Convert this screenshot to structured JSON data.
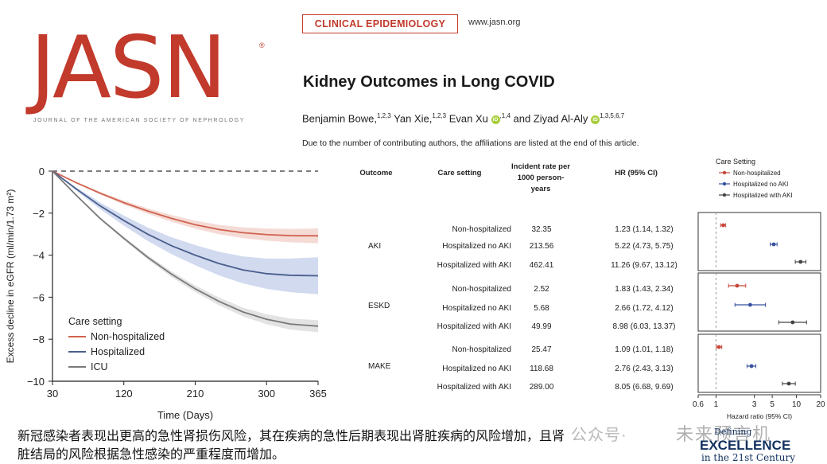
{
  "header": {
    "logo_text": "JASN",
    "logo_reg": "®",
    "logo_subtitle": "JOURNAL OF THE AMERICAN SOCIETY OF NEPHROLOGY",
    "section_badge": "CLINICAL EPIDEMIOLOGY",
    "website": "www.jasn.org",
    "title": "Kidney Outcomes in Long COVID",
    "authors": [
      {
        "name": "Benjamin Bowe,",
        "sup": "1,2,3"
      },
      {
        "name": "Yan Xie,",
        "sup": "1,2,3"
      },
      {
        "name": "Evan Xu",
        "sup": ",1,4",
        "orcid": true
      },
      {
        "name": "and Ziyad Al-Aly",
        "sup": "1,3,5,6,7",
        "orcid": true
      }
    ],
    "orcid_label": "iD",
    "affiliation_note": "Due to the number of contributing authors, the affiliations are listed at the end of this article."
  },
  "chart_data": [
    {
      "type": "line",
      "title": "",
      "xlabel": "Time (Days)",
      "ylabel": "Excess decline in eGFR (ml/min/1.73 m²)",
      "xlim": [
        30,
        365
      ],
      "ylim": [
        -10,
        0
      ],
      "xticks": [
        30,
        120,
        210,
        300,
        365
      ],
      "yticks": [
        0,
        -2,
        -4,
        -6,
        -8,
        -10
      ],
      "legend_title": "Care setting",
      "legend_position": "bottom-left",
      "reference_line": 0,
      "series": [
        {
          "name": "Non-hospitalized",
          "color": "#d0624e",
          "band_color": "#f3d5cf",
          "x": [
            30,
            60,
            90,
            120,
            150,
            180,
            210,
            240,
            270,
            300,
            330,
            365
          ],
          "y": [
            0,
            -0.55,
            -1.05,
            -1.5,
            -1.9,
            -2.25,
            -2.55,
            -2.78,
            -2.93,
            -3.02,
            -3.07,
            -3.08
          ],
          "band": 0.22
        },
        {
          "name": "Hospitalized",
          "color": "#4a5e8c",
          "band_color": "#c9d3ec",
          "x": [
            30,
            60,
            90,
            120,
            150,
            180,
            210,
            240,
            270,
            300,
            330,
            365
          ],
          "y": [
            0,
            -0.85,
            -1.65,
            -2.35,
            -3.0,
            -3.55,
            -4.0,
            -4.4,
            -4.7,
            -4.88,
            -4.96,
            -4.98
          ],
          "band": 0.55
        },
        {
          "name": "ICU",
          "color": "#7a7a7a",
          "band_color": "#dedede",
          "x": [
            30,
            60,
            90,
            120,
            150,
            180,
            210,
            240,
            270,
            300,
            330,
            365
          ],
          "y": [
            0,
            -1.15,
            -2.25,
            -3.2,
            -4.1,
            -4.9,
            -5.6,
            -6.2,
            -6.7,
            -7.05,
            -7.28,
            -7.38
          ],
          "band": 0.18
        }
      ]
    },
    {
      "type": "table",
      "columns": [
        "Outcome",
        "Care setting",
        "Incident rate per 1000 person-years",
        "HR (95% CI)"
      ],
      "rows": [
        {
          "outcome": "AKI",
          "setting": "Non-hospitalized",
          "rate": "32.35",
          "hr": "1.23 (1.14, 1.32)"
        },
        {
          "outcome": "",
          "setting": "Hospitalized no AKI",
          "rate": "213.56",
          "hr": "5.22 (4.73, 5.75)"
        },
        {
          "outcome": "",
          "setting": "Hospitalized with AKI",
          "rate": "462.41",
          "hr": "11.26 (9.67, 13.12)"
        },
        {
          "outcome": "ESKD",
          "setting": "Non-hospitalized",
          "rate": "2.52",
          "hr": "1.83 (1.43, 2.34)"
        },
        {
          "outcome": "",
          "setting": "Hospitalized no AKI",
          "rate": "5.68",
          "hr": "2.66 (1.72, 4.12)"
        },
        {
          "outcome": "",
          "setting": "Hospitalized with AKI",
          "rate": "49.99",
          "hr": "8.98 (6.03, 13.37)"
        },
        {
          "outcome": "MAKE",
          "setting": "Non-hospitalized",
          "rate": "25.47",
          "hr": "1.09 (1.01, 1.18)"
        },
        {
          "outcome": "",
          "setting": "Hospitalized no AKI",
          "rate": "118.68",
          "hr": "2.76 (2.43, 3.13)"
        },
        {
          "outcome": "",
          "setting": "Hospitalized with AKI",
          "rate": "289.00",
          "hr": "8.05 (6.68, 9.69)"
        }
      ]
    },
    {
      "type": "scatter",
      "title": "",
      "xlabel": "Hazard ratio (95% CI)",
      "x_scale": "log",
      "xlim": [
        0.6,
        20
      ],
      "xticks": [
        "0.6",
        "1",
        "3",
        "5",
        "10",
        "20"
      ],
      "xtick_values": [
        0.6,
        1,
        3,
        5,
        10,
        20
      ],
      "reference_line": 1,
      "legend_title": "Care Setting",
      "legend_position": "top",
      "series": [
        {
          "name": "Non-hospitalized",
          "color": "#c8463a"
        },
        {
          "name": "Hospitalized no AKI",
          "color": "#3651a0"
        },
        {
          "name": "Hospitalized with AKI",
          "color": "#444444"
        }
      ],
      "groups": [
        {
          "name": "AKI",
          "points": [
            {
              "series": 0,
              "hr": 1.23,
              "lo": 1.14,
              "hi": 1.32
            },
            {
              "series": 1,
              "hr": 5.22,
              "lo": 4.73,
              "hi": 5.75
            },
            {
              "series": 2,
              "hr": 11.26,
              "lo": 9.67,
              "hi": 13.12
            }
          ]
        },
        {
          "name": "ESKD",
          "points": [
            {
              "series": 0,
              "hr": 1.83,
              "lo": 1.43,
              "hi": 2.34
            },
            {
              "series": 1,
              "hr": 2.66,
              "lo": 1.72,
              "hi": 4.12
            },
            {
              "series": 2,
              "hr": 8.98,
              "lo": 6.03,
              "hi": 13.37
            }
          ]
        },
        {
          "name": "MAKE",
          "points": [
            {
              "series": 0,
              "hr": 1.09,
              "lo": 1.01,
              "hi": 1.18
            },
            {
              "series": 1,
              "hr": 2.76,
              "lo": 2.43,
              "hi": 3.13
            },
            {
              "series": 2,
              "hr": 8.05,
              "lo": 6.68,
              "hi": 9.69
            }
          ]
        }
      ]
    }
  ],
  "caption": "新冠感染者表现出更高的急性肾损伤风险，其在疾病的急性后期表现出肾脏疾病的风险增加，且肾脏结局的风险根据急性感染的严重程度而增加。",
  "overlay": {
    "watermark_left": "公众号·",
    "watermark_right": "未来预言机",
    "va_text": "VA HEALTH CARE",
    "va_defining": "Defining",
    "va_excellence": "EXCELLENCE",
    "va_century": "in the 21st Century"
  }
}
